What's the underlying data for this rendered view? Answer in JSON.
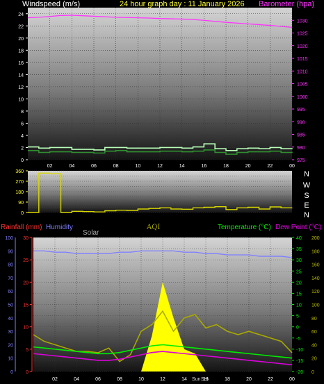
{
  "header": {
    "left_label": "Windspeed (m/s)",
    "title": "24 hour graph day : 11 January 2026",
    "right_label": "Barometer (hpa)"
  },
  "colors": {
    "windspeed": "#ffffff",
    "barometer": "#ff33ff",
    "title": "#ffff33",
    "wind_avg": "#2f8f2f",
    "wind_gust": "#b8ffb8",
    "direction": "#d8d800",
    "rainfall": "#ff3333",
    "humidity": "#8080ff",
    "solar": "#aaaaaa",
    "aqi": "#a8a800",
    "temperature": "#00ee00",
    "dewpoint": "#dd00dd",
    "solar_fill": "#ffff00"
  },
  "direction_labels": [
    "N",
    "W",
    "S",
    "E",
    "N"
  ],
  "bottom_header": {
    "rainfall": "Rainfall (mm)",
    "humidity": "Humidity",
    "solar": "Solar",
    "aqi": "AQI",
    "temperature": "Temperature (°C)",
    "dewpoint": "Dew Point (°C)"
  },
  "sun_labels": {
    "sunrise": "Sun",
    "sunset": "Set"
  },
  "chart_data": [
    {
      "type": "line",
      "x_ticks": [
        "02",
        "04",
        "06",
        "08",
        "10",
        "12",
        "14",
        "16",
        "18",
        "20",
        "22",
        "00"
      ],
      "left_axis": {
        "label": "Windspeed (m/s)",
        "ylim": [
          0,
          25
        ],
        "ticks": [
          0,
          2,
          4,
          6,
          8,
          10,
          12,
          14,
          16,
          18,
          20,
          22,
          24
        ]
      },
      "right_axis": {
        "label": "Barometer (hpa)",
        "ylim": [
          975,
          1035
        ],
        "ticks": [
          975,
          980,
          985,
          990,
          995,
          1000,
          1005,
          1010,
          1015,
          1020,
          1025,
          1030
        ]
      },
      "x_hours": [
        0,
        1,
        2,
        3,
        4,
        5,
        6,
        7,
        8,
        9,
        10,
        11,
        12,
        13,
        14,
        15,
        16,
        17,
        18,
        19,
        20,
        21,
        22,
        23,
        24
      ],
      "series": [
        {
          "name": "Barometer (hpa)",
          "axis": "right",
          "values": [
            1031,
            1031.2,
            1031.5,
            1031.9,
            1032,
            1031.8,
            1031.6,
            1031.4,
            1031.2,
            1031.1,
            1031,
            1030.9,
            1030.7,
            1030.6,
            1030.5,
            1030.3,
            1030,
            1029.6,
            1029.2,
            1028.9,
            1028.6,
            1028.3,
            1028,
            1027.6,
            1027.2
          ]
        },
        {
          "name": "Windspeed (m/s)",
          "axis": "left",
          "values": [
            1.5,
            1.2,
            1.3,
            1.3,
            1.2,
            1.2,
            1.1,
            1.4,
            1.5,
            1.3,
            1.3,
            1.3,
            1.4,
            1.4,
            1.3,
            1.4,
            1.6,
            1.2,
            0.9,
            1.2,
            1.3,
            1.3,
            1.4,
            1.2,
            1.3
          ]
        },
        {
          "name": "Gust",
          "axis": "left",
          "values": [
            2.1,
            1.9,
            2.0,
            2.0,
            1.7,
            1.7,
            1.6,
            2.0,
            2.0,
            1.9,
            1.9,
            1.9,
            2.0,
            2.0,
            1.9,
            2.1,
            2.6,
            1.8,
            1.5,
            1.8,
            1.9,
            1.8,
            2.0,
            1.8,
            1.9
          ]
        }
      ]
    },
    {
      "type": "line",
      "x_hours": [
        0,
        1,
        2,
        3,
        4,
        5,
        6,
        7,
        8,
        9,
        10,
        11,
        12,
        13,
        14,
        15,
        16,
        17,
        18,
        19,
        20,
        21,
        22,
        23,
        24
      ],
      "y_axis": {
        "ylim": [
          0,
          360
        ],
        "ticks": [
          0,
          45,
          90,
          135,
          180,
          225,
          270,
          315,
          360
        ]
      },
      "series": [
        {
          "name": "Wind direction",
          "values": [
            0,
            340,
            335,
            0,
            10,
            8,
            5,
            15,
            20,
            18,
            30,
            35,
            40,
            30,
            28,
            40,
            45,
            50,
            25,
            40,
            45,
            30,
            48,
            40,
            42
          ]
        }
      ]
    },
    {
      "type": "line",
      "x_ticks": [
        "02",
        "04",
        "06",
        "08",
        "10",
        "12",
        "14",
        "16",
        "18",
        "20",
        "22",
        "00"
      ],
      "left_axes": [
        {
          "label": "Humidity",
          "ylim": [
            0,
            100
          ],
          "ticks": [
            0,
            10,
            20,
            30,
            40,
            50,
            60,
            70,
            80,
            90,
            100
          ]
        },
        {
          "label": "Rainfall (mm)",
          "ylim": [
            0,
            30
          ],
          "ticks": [
            0,
            5,
            10,
            15,
            20,
            25,
            30
          ]
        }
      ],
      "right_axes": [
        {
          "label": "Temperature (°C)",
          "ylim": [
            -20,
            40
          ],
          "ticks": [
            -20,
            -15,
            -10,
            -5,
            0,
            5,
            10,
            15,
            20,
            25,
            30,
            35,
            40
          ]
        },
        {
          "label": "AQI",
          "ylim": [
            0,
            200
          ],
          "ticks": [
            0,
            20,
            40,
            60,
            80,
            100,
            120,
            140,
            160,
            180,
            200
          ]
        }
      ],
      "x_hours": [
        0,
        1,
        2,
        3,
        4,
        5,
        6,
        7,
        8,
        9,
        10,
        11,
        12,
        13,
        14,
        15,
        16,
        17,
        18,
        19,
        20,
        21,
        22,
        23,
        24
      ],
      "series": [
        {
          "name": "Humidity",
          "axis": "humidity",
          "values": [
            90,
            90,
            89,
            89,
            88,
            88,
            88,
            88,
            89,
            89,
            90,
            90,
            90,
            90,
            89,
            89,
            88,
            88,
            87,
            87,
            87,
            86,
            86,
            86,
            85
          ]
        },
        {
          "name": "Temperature (°C)",
          "axis": "temperature",
          "values": [
            -9,
            -9.5,
            -10,
            -10.5,
            -11,
            -11.5,
            -12,
            -12,
            -11.5,
            -10.5,
            -9.5,
            -8.5,
            -8,
            -8.5,
            -9,
            -9.5,
            -10,
            -10.5,
            -11,
            -11.5,
            -12,
            -12.5,
            -13,
            -13.5,
            -14
          ]
        },
        {
          "name": "Dew Point (°C)",
          "axis": "temperature",
          "values": [
            -12,
            -12.5,
            -13,
            -13.5,
            -14,
            -14.5,
            -15,
            -15,
            -14.5,
            -13.5,
            -12.5,
            -11.5,
            -11,
            -11.5,
            -12,
            -12.5,
            -13,
            -13.5,
            -14,
            -14.5,
            -15,
            -15.5,
            -16,
            -16.5,
            -17
          ]
        },
        {
          "name": "AQI",
          "axis": "aqi",
          "values": [
            55,
            45,
            40,
            35,
            30,
            30,
            28,
            35,
            15,
            25,
            60,
            70,
            90,
            60,
            80,
            85,
            65,
            70,
            60,
            55,
            60,
            55,
            50,
            45,
            28
          ]
        },
        {
          "name": "Solar",
          "axis": "solar",
          "values": [
            0,
            0,
            0,
            0,
            0,
            0,
            0,
            0,
            0,
            0,
            0,
            8,
            20,
            12,
            5,
            4,
            0,
            0,
            0,
            0,
            0,
            0,
            0,
            0,
            0
          ]
        }
      ]
    }
  ]
}
